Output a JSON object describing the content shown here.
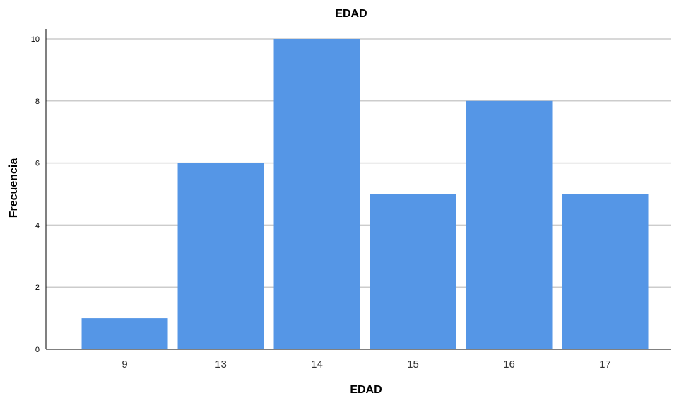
{
  "chart_data": {
    "type": "bar",
    "title": "EDAD",
    "xlabel": "EDAD",
    "ylabel": "Frecuencia",
    "categories": [
      "9",
      "13",
      "14",
      "15",
      "16",
      "17"
    ],
    "values": [
      1,
      6,
      10,
      5,
      8,
      5
    ],
    "ylim": [
      0,
      10
    ],
    "yticks": [
      "0",
      "2",
      "4",
      "6",
      "8",
      "10"
    ],
    "grid": true,
    "bar_color": "#5596E6",
    "grid_color": "#CCCCCC"
  }
}
